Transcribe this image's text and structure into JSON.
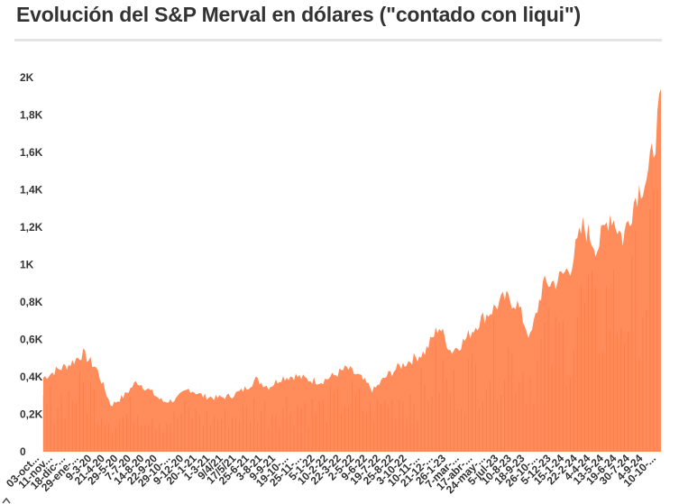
{
  "title": "Evolución del S&P Merval en dólares (\"contado con liqui\")",
  "colors": {
    "area": "#ff8c5a",
    "area_dark": "#f26a35",
    "text": "#333333",
    "rule": "#e4e4e4"
  },
  "chart_data": {
    "type": "area",
    "title": "Evolución del S&P Merval en dólares (\"contado con liqui\")",
    "xlabel": "",
    "ylabel": "",
    "ylim": [
      0,
      2000
    ],
    "grid": false,
    "y_ticks": [
      {
        "value": 0,
        "label": "0"
      },
      {
        "value": 200,
        "label": "0,2K"
      },
      {
        "value": 400,
        "label": "0,4K"
      },
      {
        "value": 600,
        "label": "0,6K"
      },
      {
        "value": 800,
        "label": "0,8K"
      },
      {
        "value": 1000,
        "label": "1K"
      },
      {
        "value": 1200,
        "label": "1,2K"
      },
      {
        "value": 1400,
        "label": "1,4K"
      },
      {
        "value": 1600,
        "label": "1,6K"
      },
      {
        "value": 1800,
        "label": "1,8K"
      },
      {
        "value": 2000,
        "label": "2K"
      }
    ],
    "x_tick_labels": [
      "03-oct...",
      "11-nov...",
      "18-dic-...",
      "29-ene-...",
      "9-3-20",
      "21-4-20",
      "29-5-20",
      "7-7-20",
      "14-8-20",
      "22-9-20",
      "29-10-...",
      "9-12-20",
      "20-1-21",
      "1-3-21",
      "9/4/21",
      "17/5/21",
      "25-6-21",
      "3-8-21",
      "9-9-21",
      "19-10-...",
      "25-11-...",
      "5-1-22",
      "10-2-22",
      "22-3-22",
      "2-5-22",
      "9-6-22",
      "19-7-22",
      "25-8-22",
      "3-10-22",
      "10-11-...",
      "21-12-...",
      "26-1-23",
      "7-mar-...",
      "17-abr-...",
      "24-may-...",
      "5-jul-23",
      "10-8-23",
      "18-9-23",
      "26-10-...",
      "5-12-23",
      "15-1-24",
      "22-2-24",
      "4-4-24",
      "13-5-24",
      "19-6-24",
      "30-7-24",
      "4-9-24",
      "10-10-..."
    ],
    "series": [
      {
        "x": [
          "2019-10-03",
          "2019-11-11",
          "2019-12-18",
          "2020-01-29",
          "2020-03-09",
          "2020-04-21",
          "2020-05-29",
          "2020-07-07",
          "2020-08-14",
          "2020-09-22",
          "2020-10-29",
          "2020-12-09",
          "2021-01-20",
          "2021-03-01",
          "2021-04-09",
          "2021-05-17",
          "2021-06-25",
          "2021-08-03",
          "2021-09-09",
          "2021-10-19",
          "2021-11-25",
          "2022-01-05",
          "2022-02-10",
          "2022-03-22",
          "2022-05-02",
          "2022-06-09",
          "2022-07-19",
          "2022-08-25",
          "2022-10-03",
          "2022-11-10",
          "2022-12-21",
          "2023-01-26",
          "2023-03-07",
          "2023-04-17",
          "2023-05-24",
          "2023-07-05",
          "2023-08-10",
          "2023-09-18",
          "2023-10-26",
          "2023-12-05",
          "2024-01-15",
          "2024-02-22",
          "2024-04-04",
          "2024-05-13",
          "2024-06-19",
          "2024-07-30",
          "2024-09-04",
          "2024-10-10"
        ],
        "values": [
          400,
          440,
          470,
          530,
          450,
          250,
          300,
          380,
          330,
          270,
          280,
          340,
          300,
          290,
          300,
          330,
          390,
          350,
          400,
          410,
          390,
          380,
          410,
          450,
          400,
          330,
          410,
          460,
          500,
          540,
          680,
          540,
          600,
          700,
          760,
          830,
          800,
          610,
          900,
          920,
          1000,
          1220,
          1100,
          1290,
          1150,
          1400,
          1500,
          1880
        ]
      }
    ]
  }
}
